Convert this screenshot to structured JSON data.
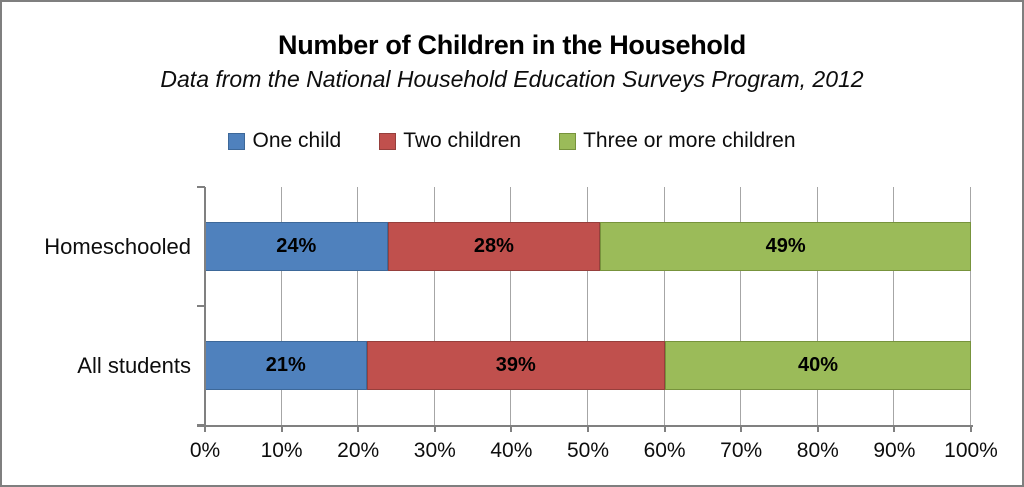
{
  "title": "Number of Children in the Household",
  "subtitle": "Data from the National Household Education Surveys Program, 2012",
  "legend": [
    {
      "label": "One child",
      "color": "#4F81BD",
      "border_color": "#3D6899"
    },
    {
      "label": "Two children",
      "color": "#C0504D",
      "border_color": "#963F3C"
    },
    {
      "label": "Three or more children",
      "color": "#9BBB59",
      "border_color": "#77933C"
    }
  ],
  "chart_data": {
    "type": "bar",
    "orientation": "horizontal",
    "stacked": true,
    "title": "Number of Children in the Household",
    "subtitle": "Data from the National Household Education Surveys Program, 2012",
    "categories": [
      "Homeschooled",
      "All students"
    ],
    "series": [
      {
        "name": "One child",
        "color": "#4F81BD",
        "border_color": "#3D6899",
        "values": [
          24,
          21
        ]
      },
      {
        "name": "Two children",
        "color": "#C0504D",
        "border_color": "#963F3C",
        "values": [
          28,
          39
        ]
      },
      {
        "name": "Three or more children",
        "color": "#9BBB59",
        "border_color": "#77933C",
        "values": [
          49,
          40
        ]
      }
    ],
    "data_labels": [
      [
        "24%",
        "28%",
        "49%"
      ],
      [
        "21%",
        "39%",
        "40%"
      ]
    ],
    "x_ticks": [
      "0%",
      "10%",
      "20%",
      "30%",
      "40%",
      "50%",
      "60%",
      "70%",
      "80%",
      "90%",
      "100%"
    ],
    "xlim": [
      0,
      100
    ],
    "grid": "vertical",
    "gridline_color": "#A6A6A6",
    "axis_color": "#808080",
    "legend_position": "top"
  }
}
